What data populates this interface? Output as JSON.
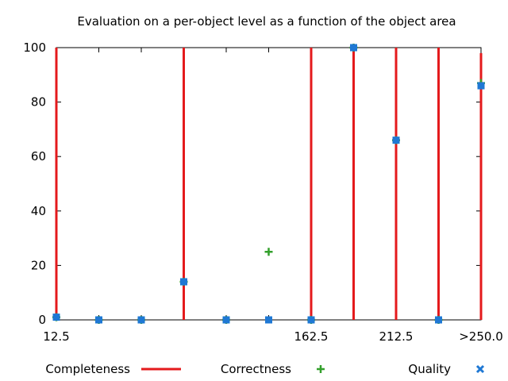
{
  "chart_data": {
    "type": "scatter",
    "title": "Evaluation on a per-object level as a function of the object area",
    "xlabel": "",
    "ylabel": "",
    "x_categories": [
      "12.5",
      "",
      "",
      "",
      "",
      "",
      "162.5",
      "",
      "212.5",
      "",
      ">250.0"
    ],
    "x_tick_labels": [
      "12.5",
      "162.5",
      "212.5",
      ">250.0"
    ],
    "ylim": [
      0,
      100
    ],
    "y_ticks": [
      0,
      20,
      40,
      60,
      80,
      100
    ],
    "grid": false,
    "legend_position": "bottom",
    "series": [
      {
        "name": "Completeness",
        "style": "impulses",
        "color": "#e41a1c",
        "values": [
          100,
          0,
          0,
          100,
          0,
          0,
          100,
          100,
          100,
          100,
          98
        ]
      },
      {
        "name": "Correctness",
        "style": "plus",
        "color": "#33a02c",
        "values": [
          1,
          0,
          0,
          14,
          0,
          25,
          0,
          100,
          66,
          0,
          87
        ]
      },
      {
        "name": "Quality",
        "style": "cross",
        "color": "#1f78d4",
        "values": [
          1,
          0,
          0,
          14,
          0,
          0,
          0,
          100,
          66,
          0,
          86
        ]
      }
    ]
  }
}
